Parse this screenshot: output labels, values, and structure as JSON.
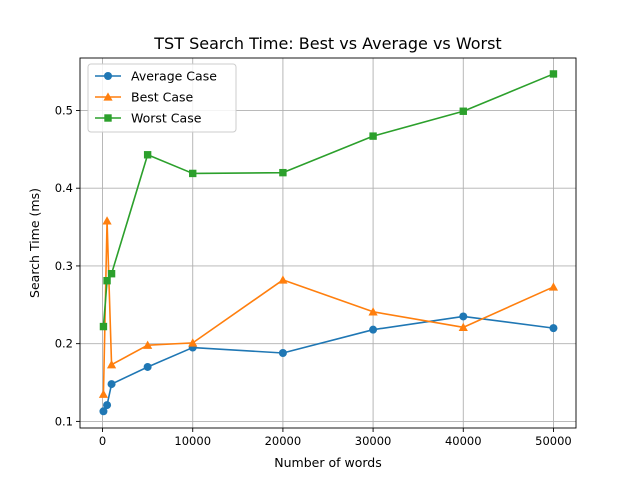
{
  "chart_data": {
    "type": "line",
    "title": "TST Search Time: Best vs Average vs Worst",
    "xlabel": "Number of words",
    "ylabel": "Search Time (ms)",
    "xlim": [
      -2500,
      52500
    ],
    "ylim": [
      0.0915,
      0.5675
    ],
    "xticks": [
      0,
      10000,
      20000,
      30000,
      40000,
      50000
    ],
    "yticks": [
      0.1,
      0.2,
      0.3,
      0.4,
      0.5
    ],
    "grid": true,
    "legend_position": "top-left",
    "x": [
      100,
      500,
      1000,
      5000,
      10000,
      20000,
      30000,
      40000,
      50000
    ],
    "series": [
      {
        "name": "Average Case",
        "color": "#1f77b4",
        "marker": "circle",
        "values": [
          0.113,
          0.121,
          0.148,
          0.17,
          0.195,
          0.188,
          0.218,
          0.235,
          0.22
        ]
      },
      {
        "name": "Best Case",
        "color": "#ff7f0e",
        "marker": "triangle",
        "values": [
          0.135,
          0.358,
          0.173,
          0.198,
          0.201,
          0.282,
          0.241,
          0.221,
          0.273
        ]
      },
      {
        "name": "Worst Case",
        "color": "#2ca02c",
        "marker": "square",
        "values": [
          0.222,
          0.281,
          0.29,
          0.443,
          0.419,
          0.42,
          0.467,
          0.499,
          0.547
        ]
      }
    ]
  }
}
